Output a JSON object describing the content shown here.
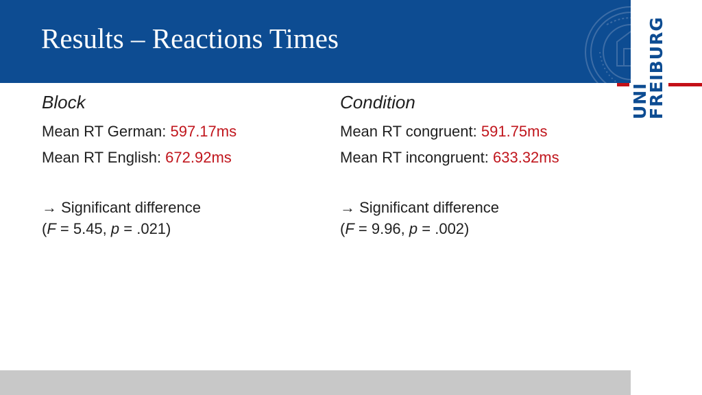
{
  "slide": {
    "title": "Results – Reactions Times"
  },
  "logo": {
    "line1": "UNI",
    "line2": "FREIBURG",
    "primary_color": "#0d4c92",
    "accent_color": "#c41017"
  },
  "block": {
    "heading": "Block",
    "rows": [
      {
        "label": "Mean RT German: ",
        "value": "597.17ms"
      },
      {
        "label": "Mean RT English: ",
        "value": "672.92ms"
      }
    ],
    "arrow": "→",
    "conclusion": "Significant difference",
    "stat_open": "(",
    "f_symbol": "F",
    "f_text": " = 5.45, ",
    "p_symbol": "p",
    "p_text": " = .021)"
  },
  "condition": {
    "heading": "Condition",
    "rows": [
      {
        "label": "Mean RT congruent: ",
        "value": "591.75ms"
      },
      {
        "label": "Mean RT incongruent: ",
        "value": "633.32ms"
      }
    ],
    "arrow": "→",
    "conclusion": "Significant difference",
    "stat_open": "(",
    "f_symbol": "F",
    "f_text": " = 9.96, ",
    "p_symbol": "p",
    "p_text": " = .002)"
  },
  "colors": {
    "header_bg": "#0d4c92",
    "value_red": "#c0151c",
    "footer_gray": "#c8c8c8"
  }
}
